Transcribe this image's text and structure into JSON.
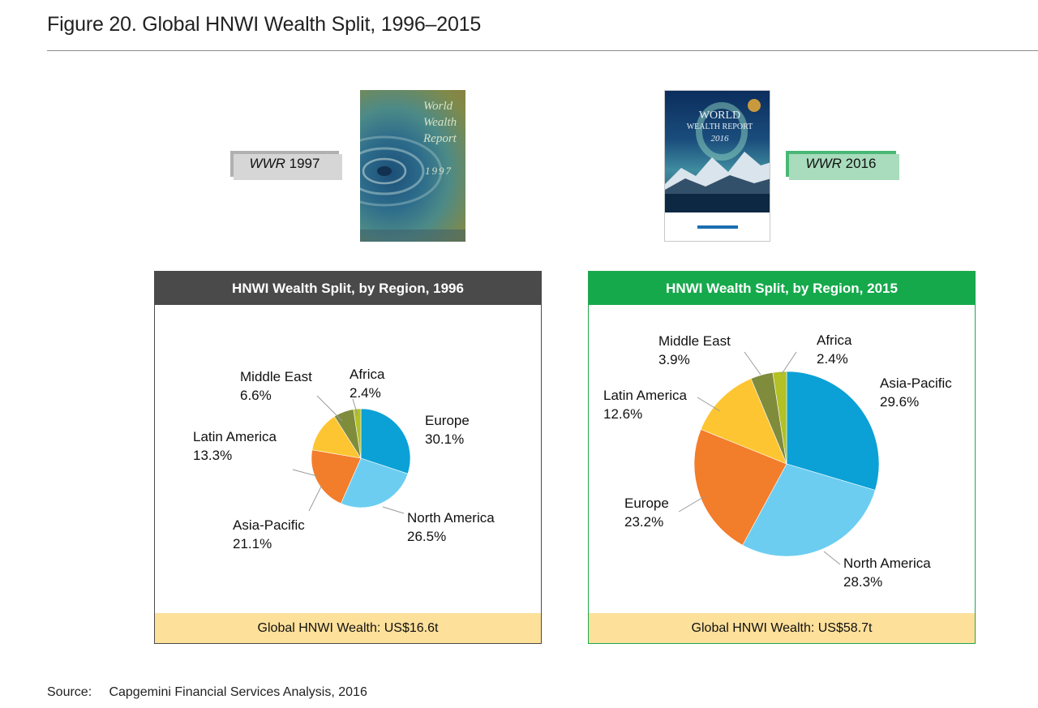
{
  "figure": {
    "title": "Figure 20. Global HNWI Wealth Split, 1996–2015",
    "source_label": "Source:",
    "source_text": "Capgemini Financial Services Analysis, 2016"
  },
  "reports": [
    {
      "name_italic": "WWR",
      "year": "1997",
      "cover_title": [
        "World",
        "Wealth",
        "Report"
      ],
      "cover_year": "1997"
    },
    {
      "name_italic": "WWR",
      "year": "2016",
      "cover_title": [
        "WORLD",
        "WEALTH REPORT"
      ],
      "cover_year": "2016"
    }
  ],
  "colors": {
    "asia_pacific": "#0ba1d6",
    "north_america": "#6ccdf1",
    "europe": "#f27d2a",
    "latin_america": "#fdc531",
    "middle_east": "#7f8c3c",
    "africa": "#b3c026",
    "leader": "#9a9a9a"
  },
  "chart_data": [
    {
      "type": "pie",
      "title": "HNWI Wealth Split, by Region, 1996",
      "footer": "Global HNWI Wealth: US$16.6t",
      "unit": "%",
      "slices": [
        {
          "label": "Europe",
          "value": 30.1,
          "value_text": "30.1%",
          "color_key": "asia_pacific"
        },
        {
          "label": "North America",
          "value": 26.5,
          "value_text": "26.5%",
          "color_key": "north_america"
        },
        {
          "label": "Asia-Pacific",
          "value": 21.1,
          "value_text": "21.1%",
          "color_key": "europe"
        },
        {
          "label": "Latin America",
          "value": 13.3,
          "value_text": "13.3%",
          "color_key": "latin_america"
        },
        {
          "label": "Middle East",
          "value": 6.6,
          "value_text": "6.6%",
          "color_key": "middle_east"
        },
        {
          "label": "Africa",
          "value": 2.4,
          "value_text": "2.4%",
          "color_key": "africa"
        }
      ]
    },
    {
      "type": "pie",
      "title": "HNWI Wealth Split, by Region, 2015",
      "footer": "Global HNWI Wealth: US$58.7t",
      "unit": "%",
      "slices": [
        {
          "label": "Asia-Pacific",
          "value": 29.6,
          "value_text": "29.6%",
          "color_key": "asia_pacific"
        },
        {
          "label": "North America",
          "value": 28.3,
          "value_text": "28.3%",
          "color_key": "north_america"
        },
        {
          "label": "Europe",
          "value": 23.2,
          "value_text": "23.2%",
          "color_key": "europe"
        },
        {
          "label": "Latin America",
          "value": 12.6,
          "value_text": "12.6%",
          "color_key": "latin_america"
        },
        {
          "label": "Middle East",
          "value": 3.9,
          "value_text": "3.9%",
          "color_key": "middle_east"
        },
        {
          "label": "Africa",
          "value": 2.4,
          "value_text": "2.4%",
          "color_key": "africa"
        }
      ]
    }
  ]
}
